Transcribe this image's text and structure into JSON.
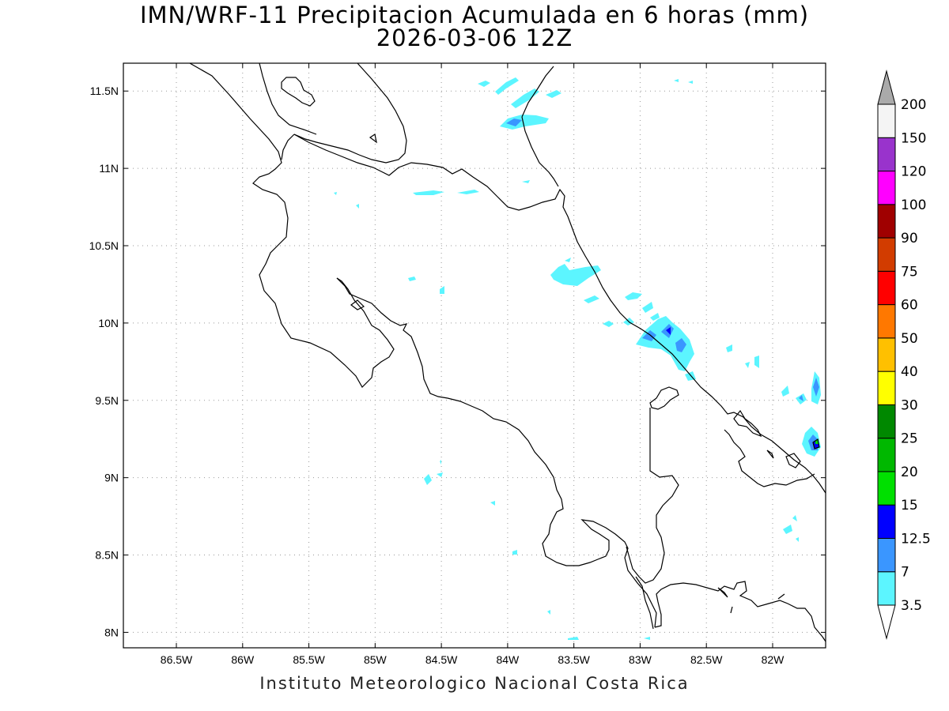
{
  "title_line1": "IMN/WRF-11 Precipitacion Acumulada en 6 horas (mm)",
  "title_line2": "2026-03-06 12Z",
  "footer": "Instituto Meteorologico Nacional Costa Rica",
  "map": {
    "lon_range": [
      -86.9,
      -81.6
    ],
    "lat_range": [
      7.9,
      11.68
    ],
    "lon_ticks": [
      {
        "value": -86.5,
        "label": "86.5W"
      },
      {
        "value": -86.0,
        "label": "86W"
      },
      {
        "value": -85.5,
        "label": "85.5W"
      },
      {
        "value": -85.0,
        "label": "85W"
      },
      {
        "value": -84.5,
        "label": "84.5W"
      },
      {
        "value": -84.0,
        "label": "84W"
      },
      {
        "value": -83.5,
        "label": "83.5W"
      },
      {
        "value": -83.0,
        "label": "83W"
      },
      {
        "value": -82.5,
        "label": "82.5W"
      },
      {
        "value": -82.0,
        "label": "82W"
      }
    ],
    "lat_ticks": [
      {
        "value": 11.5,
        "label": "11.5N"
      },
      {
        "value": 11.0,
        "label": "11N"
      },
      {
        "value": 10.5,
        "label": "10.5N"
      },
      {
        "value": 10.0,
        "label": "10N"
      },
      {
        "value": 9.5,
        "label": "9.5N"
      },
      {
        "value": 9.0,
        "label": "9N"
      },
      {
        "value": 8.5,
        "label": "8.5N"
      },
      {
        "value": 8.0,
        "label": "8N"
      }
    ]
  },
  "colorbar": {
    "levels": [
      "3.5",
      "7",
      "12.5",
      "15",
      "20",
      "25",
      "30",
      "40",
      "50",
      "60",
      "75",
      "90",
      "100",
      "120",
      "150",
      "200"
    ],
    "colors": [
      "#5cf5ff",
      "#3a96ff",
      "#0000ff",
      "#00e000",
      "#00b800",
      "#008800",
      "#ffff00",
      "#ffc000",
      "#ff7800",
      "#ff0000",
      "#d23c00",
      "#a00000",
      "#ff00ff",
      "#9933cc",
      "#f4f4f4"
    ],
    "over_color": "#aaaaaa",
    "under_color": "#ffffff"
  },
  "colors": {
    "light_cyan": "#5cf5ff",
    "mid_blue": "#3a96ff",
    "blue": "#0000ff",
    "green": "#00e000"
  }
}
